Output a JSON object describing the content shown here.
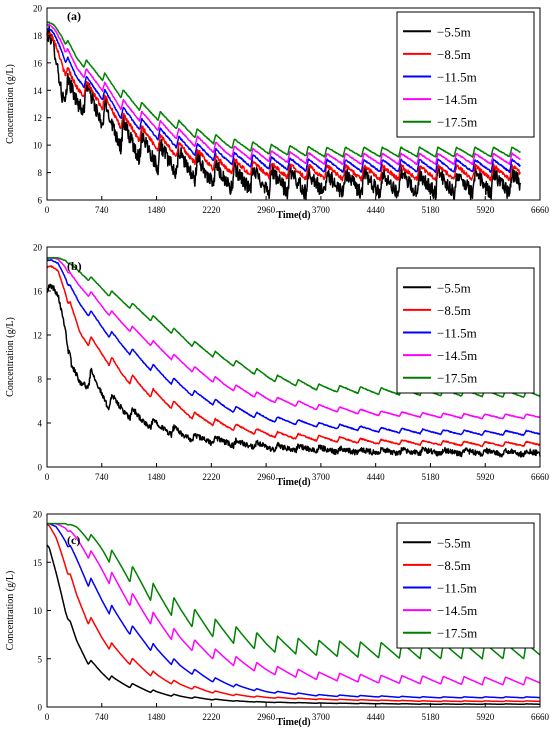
{
  "chart_data": [
    {
      "type": "line",
      "panel_label": "(a)",
      "xlabel": "Time(d)",
      "ylabel": "Concentration (g/L)",
      "xlim": [
        0,
        6660
      ],
      "ylim": [
        6,
        20
      ],
      "x_ticks": [
        0,
        740,
        1480,
        2220,
        2960,
        3700,
        4440,
        5180,
        5920,
        6660
      ],
      "y_ticks": [
        6,
        8,
        10,
        12,
        14,
        16,
        18,
        20
      ],
      "legend_position": "top-right",
      "grid": false,
      "period_days": 250,
      "series": [
        {
          "name": "−5.5m",
          "color": "#000000",
          "noise": 0.55,
          "x": [
            0,
            40,
            100,
            200,
            300,
            400,
            550,
            740,
            1000,
            1300,
            1600,
            2000,
            2400,
            3000,
            3700,
            4440,
            5180,
            5920,
            6400
          ],
          "y": [
            18.2,
            17.8,
            16.8,
            14.2,
            13.8,
            13.3,
            13.5,
            12.3,
            10.8,
            9.8,
            9.0,
            8.3,
            7.6,
            7.4,
            7.2,
            7.2,
            7.2,
            7.2,
            7.2
          ],
          "amplitude": [
            0.2,
            0.2,
            0.6,
            1.0,
            1.0,
            1.0,
            1.0,
            1.0,
            1.0,
            1.0,
            0.9,
            0.9,
            0.8,
            0.8,
            0.8,
            0.8,
            0.8,
            0.8,
            0.8
          ]
        },
        {
          "name": "−8.5m",
          "color": "#ff0000",
          "noise": 0.15,
          "x": [
            0,
            40,
            100,
            200,
            300,
            400,
            550,
            740,
            1000,
            1300,
            1600,
            2000,
            2400,
            3000,
            3700,
            4440,
            5180,
            5920,
            6400
          ],
          "y": [
            18.1,
            18.0,
            17.5,
            16.2,
            14.9,
            14.3,
            14.0,
            13.3,
            11.8,
            10.7,
            10.0,
            9.2,
            8.5,
            8.2,
            8.0,
            8.0,
            8.0,
            8.0,
            8.0
          ],
          "amplitude": [
            0.1,
            0.1,
            0.3,
            0.5,
            0.6,
            0.6,
            0.6,
            0.6,
            0.6,
            0.6,
            0.6,
            0.55,
            0.55,
            0.5,
            0.5,
            0.5,
            0.5,
            0.5,
            0.5
          ]
        },
        {
          "name": "−11.5m",
          "color": "#0000ff",
          "noise": 0.06,
          "x": [
            0,
            40,
            100,
            200,
            300,
            400,
            550,
            740,
            1000,
            1300,
            1600,
            2000,
            2400,
            3000,
            3700,
            4440,
            5180,
            5920,
            6400
          ],
          "y": [
            18.5,
            18.4,
            18.0,
            17.0,
            15.8,
            15.0,
            14.5,
            13.8,
            12.4,
            11.4,
            10.6,
            9.7,
            9.1,
            8.7,
            8.5,
            8.5,
            8.5,
            8.5,
            8.5
          ],
          "amplitude": [
            0.05,
            0.05,
            0.2,
            0.3,
            0.4,
            0.4,
            0.45,
            0.45,
            0.45,
            0.45,
            0.45,
            0.45,
            0.45,
            0.45,
            0.45,
            0.45,
            0.45,
            0.45,
            0.45
          ]
        },
        {
          "name": "−14.5m",
          "color": "#ff00ff",
          "noise": 0.04,
          "x": [
            0,
            40,
            100,
            200,
            300,
            400,
            550,
            740,
            1000,
            1300,
            1600,
            2000,
            2400,
            3000,
            3700,
            4440,
            5180,
            5920,
            6400
          ],
          "y": [
            18.8,
            18.7,
            18.4,
            17.6,
            16.5,
            15.7,
            15.1,
            14.4,
            13.0,
            12.0,
            11.2,
            10.3,
            9.6,
            9.2,
            9.0,
            9.0,
            9.0,
            9.0,
            9.0
          ],
          "amplitude": [
            0.05,
            0.05,
            0.15,
            0.25,
            0.35,
            0.35,
            0.4,
            0.4,
            0.4,
            0.4,
            0.4,
            0.4,
            0.4,
            0.4,
            0.4,
            0.4,
            0.4,
            0.4,
            0.4
          ]
        },
        {
          "name": "−17.5m",
          "color": "#008000",
          "noise": 0.03,
          "x": [
            0,
            40,
            100,
            200,
            300,
            400,
            550,
            740,
            1000,
            1300,
            1600,
            2000,
            2400,
            3000,
            3700,
            4440,
            5180,
            5920,
            6400
          ],
          "y": [
            19.0,
            18.9,
            18.7,
            18.0,
            17.2,
            16.4,
            15.8,
            15.1,
            13.8,
            12.7,
            11.9,
            10.9,
            10.2,
            9.7,
            9.5,
            9.5,
            9.5,
            9.5,
            9.5
          ],
          "amplitude": [
            0.03,
            0.03,
            0.1,
            0.2,
            0.3,
            0.3,
            0.35,
            0.35,
            0.35,
            0.35,
            0.35,
            0.35,
            0.35,
            0.35,
            0.35,
            0.35,
            0.35,
            0.35,
            0.35
          ]
        }
      ]
    },
    {
      "type": "line",
      "panel_label": "(b)",
      "xlabel": "Time(d)",
      "ylabel": "Concentration (g/L)",
      "xlim": [
        0,
        6660
      ],
      "ylim": [
        0,
        20
      ],
      "x_ticks": [
        0,
        740,
        1480,
        2220,
        2960,
        3700,
        4440,
        5180,
        5920,
        6660
      ],
      "y_ticks": [
        0,
        4,
        8,
        12,
        16,
        20
      ],
      "legend_position": "top-right",
      "grid": false,
      "period_days": 280,
      "series": [
        {
          "name": "−5.5m",
          "color": "#000000",
          "noise": 0.25,
          "x": [
            0,
            60,
            150,
            250,
            330,
            450,
            600,
            800,
            1000,
            1300,
            1600,
            2000,
            2400,
            3000,
            3700,
            4440,
            5180,
            5920,
            6660
          ],
          "y": [
            16.2,
            16.3,
            15.6,
            13.0,
            8.6,
            7.8,
            8.1,
            6.2,
            5.4,
            4.2,
            3.5,
            2.6,
            2.3,
            1.8,
            1.6,
            1.4,
            1.4,
            1.3,
            1.3
          ],
          "amplitude": [
            0.1,
            0.2,
            0.5,
            0.6,
            0.8,
            0.8,
            0.8,
            0.7,
            0.6,
            0.5,
            0.4,
            0.3,
            0.3,
            0.25,
            0.2,
            0.2,
            0.2,
            0.2,
            0.2
          ]
        },
        {
          "name": "−8.5m",
          "color": "#ff0000",
          "noise": 0.05,
          "x": [
            0,
            60,
            150,
            250,
            330,
            450,
            600,
            800,
            1000,
            1300,
            1600,
            2000,
            2400,
            3000,
            3700,
            4440,
            5180,
            5920,
            6660
          ],
          "y": [
            18.2,
            18.2,
            17.8,
            16.0,
            14.2,
            12.2,
            11.3,
            10.0,
            8.6,
            7.2,
            6.0,
            4.6,
            3.8,
            3.0,
            2.6,
            2.3,
            2.2,
            2.1,
            2.1
          ],
          "amplitude": [
            0.05,
            0.05,
            0.1,
            0.3,
            0.5,
            0.5,
            0.5,
            0.5,
            0.5,
            0.45,
            0.4,
            0.35,
            0.3,
            0.25,
            0.25,
            0.2,
            0.2,
            0.2,
            0.2
          ]
        },
        {
          "name": "−11.5m",
          "color": "#0000ff",
          "noise": 0.04,
          "x": [
            0,
            60,
            150,
            250,
            330,
            450,
            600,
            800,
            1000,
            1300,
            1600,
            2000,
            2400,
            3000,
            3700,
            4440,
            5180,
            5920,
            6660
          ],
          "y": [
            18.8,
            18.8,
            18.5,
            17.3,
            16.0,
            14.8,
            13.8,
            12.4,
            11.2,
            9.6,
            8.2,
            6.6,
            5.5,
            4.4,
            3.8,
            3.4,
            3.2,
            3.1,
            3.1
          ],
          "amplitude": [
            0.02,
            0.02,
            0.05,
            0.2,
            0.3,
            0.35,
            0.35,
            0.35,
            0.35,
            0.35,
            0.35,
            0.3,
            0.3,
            0.25,
            0.2,
            0.2,
            0.2,
            0.2,
            0.2
          ]
        },
        {
          "name": "−14.5m",
          "color": "#ff00ff",
          "noise": 0.03,
          "x": [
            0,
            60,
            150,
            250,
            330,
            450,
            600,
            800,
            1000,
            1300,
            1600,
            2000,
            2400,
            3000,
            3700,
            4440,
            5180,
            5920,
            6660
          ],
          "y": [
            19.0,
            19.0,
            18.9,
            18.2,
            17.3,
            16.4,
            15.6,
            14.3,
            13.2,
            11.8,
            10.4,
            8.8,
            7.5,
            6.2,
            5.4,
            4.9,
            4.7,
            4.6,
            4.6
          ],
          "amplitude": [
            0.02,
            0.02,
            0.03,
            0.1,
            0.2,
            0.25,
            0.3,
            0.3,
            0.3,
            0.3,
            0.3,
            0.3,
            0.3,
            0.25,
            0.25,
            0.2,
            0.2,
            0.2,
            0.2
          ]
        },
        {
          "name": "−17.5m",
          "color": "#008000",
          "noise": 0.03,
          "x": [
            0,
            60,
            150,
            250,
            330,
            450,
            600,
            800,
            1000,
            1300,
            1600,
            2000,
            2400,
            3000,
            3700,
            4440,
            5180,
            5920,
            6660
          ],
          "y": [
            19.0,
            19.0,
            19.0,
            18.8,
            18.3,
            17.7,
            17.0,
            16.0,
            15.2,
            14.0,
            12.8,
            11.1,
            9.8,
            8.2,
            7.2,
            6.9,
            6.8,
            6.7,
            6.6
          ],
          "amplitude": [
            0.02,
            0.02,
            0.02,
            0.05,
            0.1,
            0.2,
            0.25,
            0.3,
            0.3,
            0.3,
            0.3,
            0.3,
            0.3,
            0.3,
            0.3,
            0.3,
            0.3,
            0.3,
            0.3
          ]
        }
      ]
    },
    {
      "type": "line",
      "panel_label": "(c)",
      "xlabel": "Time(d)",
      "ylabel": "Concentration (g/L)",
      "xlim": [
        0,
        6660
      ],
      "ylim": [
        0,
        20
      ],
      "x_ticks": [
        0,
        740,
        1480,
        2220,
        2960,
        3700,
        4440,
        5180,
        5920,
        6660
      ],
      "y_ticks": [
        0,
        5,
        10,
        15,
        20
      ],
      "legend_position": "top-right",
      "grid": false,
      "period_days": 280,
      "series": [
        {
          "name": "−5.5m",
          "color": "#000000",
          "noise": 0.0,
          "x": [
            0,
            30,
            120,
            250,
            400,
            550,
            740,
            900,
            1100,
            1300,
            1480,
            1800,
            2220,
            2600,
            2960,
            3700,
            4440,
            5180,
            5920,
            6660
          ],
          "y": [
            16.8,
            16.5,
            14.0,
            10.0,
            6.8,
            4.8,
            3.6,
            2.8,
            2.3,
            1.9,
            1.5,
            1.1,
            0.8,
            0.6,
            0.5,
            0.4,
            0.35,
            0.3,
            0.3,
            0.3
          ],
          "amplitude": [
            0,
            0,
            0,
            0.2,
            0.3,
            0.3,
            0.3,
            0.3,
            0.25,
            0.2,
            0.15,
            0.1,
            0.05,
            0.03,
            0.02,
            0.02,
            0.02,
            0.02,
            0.02,
            0.02
          ]
        },
        {
          "name": "−8.5m",
          "color": "#ff0000",
          "noise": 0.0,
          "x": [
            0,
            30,
            120,
            250,
            400,
            550,
            740,
            900,
            1100,
            1300,
            1480,
            1800,
            2220,
            2600,
            2960,
            3700,
            4440,
            5180,
            5920,
            6660
          ],
          "y": [
            18.9,
            18.8,
            17.6,
            14.8,
            11.5,
            9.2,
            7.3,
            6.0,
            4.9,
            4.0,
            3.2,
            2.3,
            1.6,
            1.2,
            1.0,
            0.8,
            0.7,
            0.6,
            0.6,
            0.6
          ],
          "amplitude": [
            0,
            0,
            0,
            0.3,
            0.5,
            0.5,
            0.5,
            0.45,
            0.4,
            0.35,
            0.3,
            0.2,
            0.12,
            0.08,
            0.05,
            0.04,
            0.03,
            0.03,
            0.03,
            0.03
          ]
        },
        {
          "name": "−11.5m",
          "color": "#0000ff",
          "noise": 0.0,
          "x": [
            0,
            30,
            120,
            250,
            400,
            550,
            740,
            900,
            1100,
            1300,
            1480,
            1800,
            2220,
            2600,
            2960,
            3700,
            4440,
            5180,
            5920,
            6660
          ],
          "y": [
            19.0,
            19.0,
            18.7,
            17.3,
            15.2,
            13.2,
            11.2,
            9.7,
            8.2,
            7.0,
            5.8,
            4.2,
            2.9,
            2.1,
            1.6,
            1.2,
            1.1,
            1.0,
            1.0,
            1.0
          ],
          "amplitude": [
            0,
            0,
            0,
            0.2,
            0.5,
            0.6,
            0.6,
            0.6,
            0.55,
            0.5,
            0.45,
            0.35,
            0.25,
            0.15,
            0.1,
            0.08,
            0.06,
            0.05,
            0.05,
            0.05
          ]
        },
        {
          "name": "−14.5m",
          "color": "#ff00ff",
          "noise": 0.0,
          "x": [
            0,
            30,
            120,
            250,
            400,
            550,
            740,
            900,
            1100,
            1300,
            1480,
            1800,
            2220,
            2600,
            2960,
            3700,
            4440,
            5180,
            5920,
            6660
          ],
          "y": [
            19.0,
            19.0,
            19.0,
            18.6,
            17.4,
            16.0,
            14.4,
            13.0,
            11.4,
            10.0,
            8.8,
            7.0,
            5.6,
            4.6,
            3.9,
            3.2,
            2.9,
            2.8,
            2.7,
            2.7
          ],
          "amplitude": [
            0,
            0,
            0,
            0.1,
            0.3,
            0.5,
            0.7,
            0.75,
            0.75,
            0.75,
            0.7,
            0.65,
            0.55,
            0.5,
            0.45,
            0.4,
            0.4,
            0.4,
            0.4,
            0.4
          ]
        },
        {
          "name": "−17.5m",
          "color": "#008000",
          "noise": 0.0,
          "x": [
            0,
            30,
            120,
            250,
            400,
            550,
            740,
            900,
            1100,
            1300,
            1480,
            1800,
            2220,
            2600,
            2960,
            3700,
            4440,
            5180,
            5920,
            6660
          ],
          "y": [
            19.0,
            19.0,
            19.0,
            19.0,
            18.6,
            17.7,
            16.5,
            15.3,
            14.0,
            12.7,
            11.5,
            9.9,
            8.3,
            7.3,
            6.6,
            6.1,
            5.9,
            5.8,
            5.8,
            5.8
          ],
          "amplitude": [
            0,
            0,
            0,
            0,
            0.2,
            0.4,
            0.6,
            0.8,
            0.9,
            1.0,
            1.0,
            1.0,
            0.95,
            0.9,
            0.85,
            0.8,
            0.8,
            0.8,
            0.8,
            0.8
          ]
        }
      ]
    }
  ]
}
